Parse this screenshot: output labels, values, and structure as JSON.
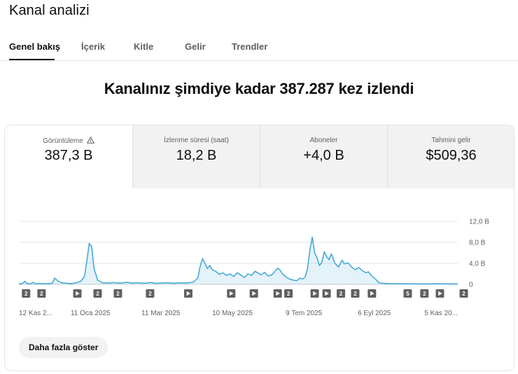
{
  "header": {
    "title": "Kanal analizi"
  },
  "tabs": [
    {
      "label": "Genel bakış",
      "active": true
    },
    {
      "label": "İçerik"
    },
    {
      "label": "Kitle"
    },
    {
      "label": "Gelir"
    },
    {
      "label": "Trendler"
    }
  ],
  "headline": "Kanalınız şimdiye kadar 387.287 kez izlendi",
  "metrics": [
    {
      "label": "Görüntüleme",
      "value": "387,3 B",
      "icon": "warning-icon",
      "active": true
    },
    {
      "label": "İzlenme süresi (saat)",
      "value": "18,2 B"
    },
    {
      "label": "Aboneler",
      "value": "+4,0 B"
    },
    {
      "label": "Tahmini gelir",
      "value": "$509,36"
    }
  ],
  "chart_data": {
    "type": "area",
    "y_ticks": [
      "12,0 B",
      "8,0 B",
      "4,0 B",
      "0"
    ],
    "y_axis_position": "right",
    "ylim": [
      0,
      12000
    ],
    "x_ticks": [
      "12 Kas 2...",
      "11 Oca 2025",
      "11 Mar 2025",
      "10 May 2025",
      "9 Tem 2025",
      "6 Eyl 2025",
      "5 Kas 20..."
    ],
    "x_days": [
      0,
      60,
      119,
      179,
      239,
      298,
      358
    ],
    "series": [
      {
        "color": "#3ea6d4",
        "points": [
          [
            0,
            100
          ],
          [
            3,
            150
          ],
          [
            5,
            600
          ],
          [
            7,
            150
          ],
          [
            10,
            100
          ],
          [
            12,
            400
          ],
          [
            14,
            100
          ],
          [
            18,
            150
          ],
          [
            22,
            100
          ],
          [
            28,
            200
          ],
          [
            30,
            1200
          ],
          [
            33,
            600
          ],
          [
            36,
            300
          ],
          [
            40,
            200
          ],
          [
            44,
            150
          ],
          [
            48,
            300
          ],
          [
            52,
            600
          ],
          [
            55,
            1500
          ],
          [
            57,
            4500
          ],
          [
            59,
            7800
          ],
          [
            61,
            7200
          ],
          [
            63,
            3000
          ],
          [
            66,
            800
          ],
          [
            70,
            300
          ],
          [
            75,
            250
          ],
          [
            80,
            350
          ],
          [
            85,
            200
          ],
          [
            90,
            400
          ],
          [
            95,
            250
          ],
          [
            100,
            300
          ],
          [
            105,
            200
          ],
          [
            110,
            350
          ],
          [
            115,
            200
          ],
          [
            120,
            250
          ],
          [
            125,
            300
          ],
          [
            130,
            200
          ],
          [
            135,
            300
          ],
          [
            140,
            250
          ],
          [
            146,
            400
          ],
          [
            150,
            1200
          ],
          [
            152,
            3500
          ],
          [
            154,
            4900
          ],
          [
            156,
            4000
          ],
          [
            158,
            3000
          ],
          [
            160,
            3600
          ],
          [
            162,
            2800
          ],
          [
            165,
            2500
          ],
          [
            168,
            1900
          ],
          [
            171,
            2200
          ],
          [
            174,
            1700
          ],
          [
            177,
            2000
          ],
          [
            180,
            1500
          ],
          [
            183,
            2200
          ],
          [
            186,
            1800
          ],
          [
            189,
            1300
          ],
          [
            192,
            2000
          ],
          [
            195,
            1700
          ],
          [
            198,
            2500
          ],
          [
            201,
            2100
          ],
          [
            203,
            1800
          ],
          [
            206,
            2300
          ],
          [
            209,
            1600
          ],
          [
            212,
            1800
          ],
          [
            214,
            2300
          ],
          [
            217,
            3100
          ],
          [
            219,
            2700
          ],
          [
            221,
            2000
          ],
          [
            224,
            1400
          ],
          [
            227,
            1000
          ],
          [
            230,
            800
          ],
          [
            233,
            700
          ],
          [
            236,
            1200
          ],
          [
            238,
            1000
          ],
          [
            240,
            1400
          ],
          [
            242,
            3000
          ],
          [
            244,
            6500
          ],
          [
            246,
            9000
          ],
          [
            248,
            6000
          ],
          [
            250,
            5000
          ],
          [
            252,
            3600
          ],
          [
            254,
            4200
          ],
          [
            256,
            6200
          ],
          [
            258,
            5300
          ],
          [
            260,
            4700
          ],
          [
            262,
            5800
          ],
          [
            265,
            4000
          ],
          [
            268,
            3300
          ],
          [
            271,
            4600
          ],
          [
            273,
            3900
          ],
          [
            276,
            4100
          ],
          [
            279,
            3300
          ],
          [
            282,
            2800
          ],
          [
            285,
            3200
          ],
          [
            288,
            2600
          ],
          [
            291,
            2200
          ],
          [
            293,
            2400
          ],
          [
            296,
            1600
          ],
          [
            299,
            1000
          ],
          [
            302,
            300
          ],
          [
            305,
            200
          ],
          [
            310,
            150
          ],
          [
            320,
            120
          ],
          [
            330,
            100
          ],
          [
            340,
            80
          ],
          [
            350,
            120
          ],
          [
            358,
            100
          ],
          [
            368,
            100
          ]
        ]
      }
    ],
    "markers": [
      {
        "day": 6,
        "kind": "count",
        "label": "2"
      },
      {
        "day": 19,
        "kind": "count",
        "label": "2"
      },
      {
        "day": 49,
        "kind": "video"
      },
      {
        "day": 66,
        "kind": "count",
        "label": "2"
      },
      {
        "day": 83,
        "kind": "count",
        "label": "2"
      },
      {
        "day": 110,
        "kind": "count",
        "label": "2"
      },
      {
        "day": 142,
        "kind": "video"
      },
      {
        "day": 178,
        "kind": "video"
      },
      {
        "day": 197,
        "kind": "video"
      },
      {
        "day": 217,
        "kind": "video"
      },
      {
        "day": 226,
        "kind": "count",
        "label": "2"
      },
      {
        "day": 248,
        "kind": "video"
      },
      {
        "day": 258,
        "kind": "video"
      },
      {
        "day": 270,
        "kind": "count",
        "label": "2"
      },
      {
        "day": 282,
        "kind": "count",
        "label": "2"
      },
      {
        "day": 296,
        "kind": "video"
      },
      {
        "day": 326,
        "kind": "count",
        "label": "5"
      },
      {
        "day": 340,
        "kind": "count",
        "label": "2"
      },
      {
        "day": 353,
        "kind": "video"
      },
      {
        "day": 373,
        "kind": "count",
        "label": "2"
      }
    ],
    "grid": true
  },
  "actions": {
    "show_more_label": "Daha fazla göster"
  }
}
